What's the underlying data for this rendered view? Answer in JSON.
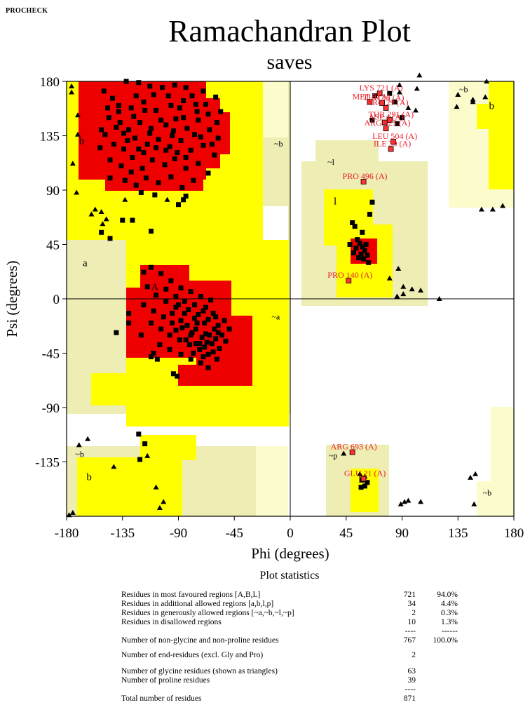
{
  "header": {
    "program": "PROCHECK"
  },
  "chart_data": {
    "type": "scatter",
    "title": "Ramachandran Plot",
    "subtitle": "saves",
    "xlabel": "Phi (degrees)",
    "ylabel": "Psi (degrees)",
    "xlim": [
      -180,
      180
    ],
    "ylim": [
      -180,
      180
    ],
    "xticks": [
      -180,
      -135,
      -90,
      -45,
      0,
      45,
      90,
      135,
      180
    ],
    "yticks": [
      180,
      135,
      90,
      45,
      0,
      -45,
      -90,
      -135
    ],
    "xtick_labels": [
      "-180",
      "-135",
      "-90",
      "-45",
      "0",
      "45",
      "90",
      "135",
      "180"
    ],
    "ytick_labels": [
      "180",
      "135",
      "90",
      "45",
      "0",
      "-45",
      "-90",
      "-135"
    ],
    "colors": {
      "core": "#ee0000",
      "allowed": "#ffff00",
      "generous": "#ededb4",
      "generous_light": "#fbfbcb",
      "background": "#ffffff",
      "label": "#e8202a",
      "point": "#000000"
    },
    "region_labels": [
      {
        "text": "b",
        "phi": -170,
        "psi": 128
      },
      {
        "text": "~b",
        "phi": -13,
        "psi": 126
      },
      {
        "text": "~l",
        "phi": 30,
        "psi": 111
      },
      {
        "text": "l",
        "phi": 35,
        "psi": 78
      },
      {
        "text": "a",
        "phi": -167,
        "psi": 27
      },
      {
        "text": "A",
        "phi": -112,
        "psi": 7
      },
      {
        "text": "~a",
        "phi": -15,
        "psi": -17
      },
      {
        "text": "~b",
        "phi": -173,
        "psi": -131
      },
      {
        "text": "b",
        "phi": -164,
        "psi": -150
      },
      {
        "text": "~p",
        "phi": 31,
        "psi": -132
      },
      {
        "text": "p",
        "phi": 55,
        "psi": -150
      },
      {
        "text": "~b",
        "phi": 136,
        "psi": 171
      },
      {
        "text": "b",
        "phi": 160,
        "psi": 157
      },
      {
        "text": "~b",
        "phi": 155,
        "psi": -163
      }
    ],
    "labeled_residues": [
      {
        "label": "LYS 721 (A)",
        "phi": 72,
        "psi": 170
      },
      {
        "label": "MET 5 (A)",
        "phi": 64,
        "psi": 163
      },
      {
        "label": "THR 16 (A)",
        "phi": 74,
        "psi": 162
      },
      {
        "label": "ARG 29 (A)",
        "phi": 77,
        "psi": 158
      },
      {
        "label": "THR 291 (A)",
        "phi": 80,
        "psi": 148
      },
      {
        "label": "ASP 4 (A)",
        "phi": 76,
        "psi": 146
      },
      {
        "label": "ARG 625 (A)",
        "phi": 77,
        "psi": 141
      },
      {
        "label": "LEU 504 (A)",
        "phi": 83,
        "psi": 130
      },
      {
        "label": "ILE 30 (A)",
        "phi": 81,
        "psi": 124
      },
      {
        "label": "PRO 496 (A)",
        "phi": 59,
        "psi": 97
      },
      {
        "label": "PRO 140 (A)",
        "phi": 47,
        "psi": 15
      },
      {
        "label": "ARG 693 (A)",
        "phi": 50,
        "psi": -127
      },
      {
        "label": "GLU 21 (A)",
        "phi": 59,
        "psi": -149
      }
    ],
    "glycine_points": [
      [
        -176,
        176
      ],
      [
        -176,
        171
      ],
      [
        -171,
        152
      ],
      [
        -171,
        136
      ],
      [
        -175,
        112
      ],
      [
        -152,
        72
      ],
      [
        -148,
        66
      ],
      [
        -160,
        70
      ],
      [
        -172,
        88
      ],
      [
        -133,
        82
      ],
      [
        -99,
        82
      ],
      [
        -157,
        74
      ],
      [
        -151,
        62
      ],
      [
        -163,
        -116
      ],
      [
        -170,
        -121
      ],
      [
        -142,
        -139
      ],
      [
        -115,
        -130
      ],
      [
        -108,
        -156
      ],
      [
        -102,
        -168
      ],
      [
        -105,
        -173
      ],
      [
        -178,
        -179
      ],
      [
        -175,
        -177
      ],
      [
        88,
        171
      ],
      [
        95,
        158
      ],
      [
        101,
        156
      ],
      [
        102,
        174
      ],
      [
        88,
        177
      ],
      [
        87,
        25
      ],
      [
        80,
        17
      ],
      [
        91,
        10
      ],
      [
        98,
        8
      ],
      [
        105,
        7
      ],
      [
        91,
        4
      ],
      [
        86,
        2
      ],
      [
        120,
        0
      ],
      [
        134,
        159
      ],
      [
        147,
        165
      ],
      [
        147,
        163
      ],
      [
        154,
        74
      ],
      [
        163,
        74
      ],
      [
        171,
        77
      ],
      [
        104,
        185
      ],
      [
        135,
        169
      ],
      [
        157,
        167
      ],
      [
        158,
        180
      ],
      [
        145,
        -148
      ],
      [
        149,
        -145
      ],
      [
        95,
        -167
      ],
      [
        105,
        -168
      ],
      [
        148,
        -170
      ],
      [
        43,
        -128
      ],
      [
        56,
        -145
      ],
      [
        60,
        -147
      ],
      [
        89,
        -170
      ],
      [
        92,
        -168
      ]
    ],
    "scatter_points": [
      [
        -132,
        180
      ],
      [
        -122,
        179
      ],
      [
        -113,
        176
      ],
      [
        -103,
        175
      ],
      [
        -93,
        177
      ],
      [
        -84,
        175
      ],
      [
        -70,
        172
      ],
      [
        -60,
        167
      ],
      [
        -150,
        172
      ],
      [
        -143,
        166
      ],
      [
        -138,
        160
      ],
      [
        -128,
        158
      ],
      [
        -118,
        163
      ],
      [
        -108,
        156
      ],
      [
        -96,
        160
      ],
      [
        -86,
        164
      ],
      [
        -76,
        161
      ],
      [
        -66,
        153
      ],
      [
        -56,
        155
      ],
      [
        -146,
        150
      ],
      [
        -137,
        146
      ],
      [
        -130,
        140
      ],
      [
        -121,
        146
      ],
      [
        -112,
        141
      ],
      [
        -100,
        144
      ],
      [
        -92,
        149
      ],
      [
        -83,
        141
      ],
      [
        -74,
        148
      ],
      [
        -65,
        140
      ],
      [
        -58,
        133
      ],
      [
        -149,
        136
      ],
      [
        -142,
        128
      ],
      [
        -134,
        124
      ],
      [
        -125,
        133
      ],
      [
        -115,
        128
      ],
      [
        -106,
        132
      ],
      [
        -97,
        126
      ],
      [
        -88,
        131
      ],
      [
        -80,
        123
      ],
      [
        -70,
        127
      ],
      [
        -61,
        119
      ],
      [
        -145,
        115
      ],
      [
        -136,
        110
      ],
      [
        -127,
        117
      ],
      [
        -119,
        108
      ],
      [
        -111,
        115
      ],
      [
        -101,
        111
      ],
      [
        -93,
        116
      ],
      [
        -84,
        108
      ],
      [
        -74,
        112
      ],
      [
        -66,
        104
      ],
      [
        -133,
        98
      ],
      [
        -124,
        94
      ],
      [
        -116,
        100
      ],
      [
        -106,
        96
      ],
      [
        -96,
        101
      ],
      [
        -87,
        92
      ],
      [
        -78,
        98
      ],
      [
        -120,
        88
      ],
      [
        -109,
        86
      ],
      [
        -84,
        85
      ],
      [
        -140,
        142
      ],
      [
        -131,
        131
      ],
      [
        -122,
        124
      ],
      [
        -113,
        137
      ],
      [
        -104,
        148
      ],
      [
        -94,
        139
      ],
      [
        -86,
        150
      ],
      [
        -77,
        136
      ],
      [
        -68,
        161
      ],
      [
        -59,
        146
      ],
      [
        -124,
        168
      ],
      [
        -110,
        169
      ],
      [
        -98,
        168
      ],
      [
        -89,
        158
      ],
      [
        -79,
        168
      ],
      [
        -138,
        155
      ],
      [
        -147,
        158
      ],
      [
        -126,
        151
      ],
      [
        -117,
        156
      ],
      [
        -100,
        123
      ],
      [
        -91,
        121
      ],
      [
        -84,
        117
      ],
      [
        -72,
        134
      ],
      [
        -63,
        128
      ],
      [
        -134,
        137
      ],
      [
        -118,
        121
      ],
      [
        -108,
        125
      ],
      [
        -152,
        140
      ],
      [
        -153,
        125
      ],
      [
        -145,
        100
      ],
      [
        -128,
        105
      ],
      [
        -75,
        155
      ],
      [
        -95,
        135
      ],
      [
        -112,
        26
      ],
      [
        -104,
        21
      ],
      [
        -96,
        15
      ],
      [
        -88,
        9
      ],
      [
        -80,
        6
      ],
      [
        -72,
        2
      ],
      [
        -64,
        -1
      ],
      [
        -115,
        10
      ],
      [
        -108,
        3
      ],
      [
        -100,
        -2
      ],
      [
        -92,
        -7
      ],
      [
        -85,
        -12
      ],
      [
        -77,
        -16
      ],
      [
        -69,
        -20
      ],
      [
        -61,
        -25
      ],
      [
        -55,
        -30
      ],
      [
        -118,
        -5
      ],
      [
        -110,
        -10
      ],
      [
        -102,
        -15
      ],
      [
        -95,
        -20
      ],
      [
        -87,
        -24
      ],
      [
        -79,
        -28
      ],
      [
        -71,
        -32
      ],
      [
        -63,
        -37
      ],
      [
        -57,
        -41
      ],
      [
        -112,
        -20
      ],
      [
        -104,
        -25
      ],
      [
        -97,
        -30
      ],
      [
        -89,
        -34
      ],
      [
        -81,
        -38
      ],
      [
        -73,
        -42
      ],
      [
        -66,
        -46
      ],
      [
        -59,
        -50
      ],
      [
        -105,
        -38
      ],
      [
        -97,
        -42
      ],
      [
        -88,
        -46
      ],
      [
        -80,
        -50
      ],
      [
        -72,
        -53
      ],
      [
        -66,
        -57
      ],
      [
        -90,
        -5
      ],
      [
        -82,
        -9
      ],
      [
        -74,
        -13
      ],
      [
        -66,
        -17
      ],
      [
        -58,
        -22
      ],
      [
        -83,
        -22
      ],
      [
        -76,
        -25
      ],
      [
        -68,
        -29
      ],
      [
        -60,
        -33
      ],
      [
        -84,
        -34
      ],
      [
        -76,
        -37
      ],
      [
        -69,
        -40
      ],
      [
        -62,
        -44
      ],
      [
        -78,
        -45
      ],
      [
        -70,
        -48
      ],
      [
        -95,
        -12
      ],
      [
        -70,
        -10
      ],
      [
        -62,
        -12
      ],
      [
        -100,
        8
      ],
      [
        -92,
        2
      ],
      [
        -85,
        -2
      ],
      [
        -77,
        -5
      ],
      [
        -68,
        -7
      ],
      [
        -60,
        -15
      ],
      [
        -53,
        -18
      ],
      [
        -73,
        -37
      ],
      [
        -65,
        -30
      ],
      [
        -80,
        -30
      ],
      [
        -88,
        -18
      ],
      [
        -75,
        -20
      ],
      [
        -92,
        -26
      ],
      [
        -67,
        -36
      ],
      [
        -58,
        -28
      ],
      [
        -118,
        22
      ],
      [
        -110,
        -45
      ],
      [
        -112,
        -48
      ],
      [
        -107,
        -50
      ],
      [
        -94,
        -62
      ],
      [
        -91,
        -64
      ],
      [
        -130,
        -20
      ],
      [
        -120,
        -30
      ],
      [
        -49,
        -25
      ],
      [
        -52,
        -35
      ],
      [
        54,
        49
      ],
      [
        56,
        46
      ],
      [
        58,
        43
      ],
      [
        60,
        40
      ],
      [
        57,
        37
      ],
      [
        55,
        34
      ],
      [
        59,
        33
      ],
      [
        62,
        36
      ],
      [
        53,
        42
      ],
      [
        61,
        45
      ],
      [
        52,
        60
      ],
      [
        50,
        63
      ],
      [
        58,
        55
      ],
      [
        64,
        70
      ],
      [
        66,
        80
      ],
      [
        48,
        45
      ],
      [
        51,
        38
      ],
      [
        63,
        30
      ],
      [
        -145,
        50
      ],
      [
        -152,
        55
      ],
      [
        -135,
        65
      ],
      [
        -127,
        65
      ],
      [
        -112,
        56
      ],
      [
        -90,
        78
      ],
      [
        -86,
        82
      ],
      [
        -130,
        -12
      ],
      [
        -140,
        -28
      ],
      [
        -122,
        -112
      ],
      [
        -117,
        -120
      ],
      [
        -121,
        -133
      ],
      [
        58,
        -150
      ],
      [
        62,
        -152
      ],
      [
        60,
        -155
      ],
      [
        57,
        -156
      ],
      [
        68,
        168
      ],
      [
        80,
        170
      ],
      [
        84,
        163
      ],
      [
        90,
        150
      ],
      [
        86,
        145
      ],
      [
        66,
        148
      ]
    ]
  },
  "stats": {
    "title": "Plot statistics",
    "rows": [
      {
        "label": "Residues in most favoured regions  [A,B,L]",
        "count": "721",
        "pct": "94.0%"
      },
      {
        "label": "Residues in additional allowed regions  [a,b,l,p]",
        "count": "34",
        "pct": "4.4%"
      },
      {
        "label": "Residues in generously allowed regions  [~a,~b,~l,~p]",
        "count": "2",
        "pct": "0.3%"
      },
      {
        "label": "Residues in disallowed regions",
        "count": "10",
        "pct": "1.3%"
      },
      {
        "label": "",
        "count": "----",
        "pct": "------"
      },
      {
        "label": "Number of non-glycine and non-proline residues",
        "count": "767",
        "pct": "100.0%"
      },
      {
        "label": "Number of end-residues (excl. Gly and Pro)",
        "count": "2",
        "pct": ""
      },
      {
        "label": "Number of glycine residues (shown as triangles)",
        "count": "63",
        "pct": ""
      },
      {
        "label": "Number of proline residues",
        "count": "39",
        "pct": ""
      },
      {
        "label": "",
        "count": "----",
        "pct": ""
      },
      {
        "label": "Total number of residues",
        "count": "871",
        "pct": ""
      }
    ]
  }
}
